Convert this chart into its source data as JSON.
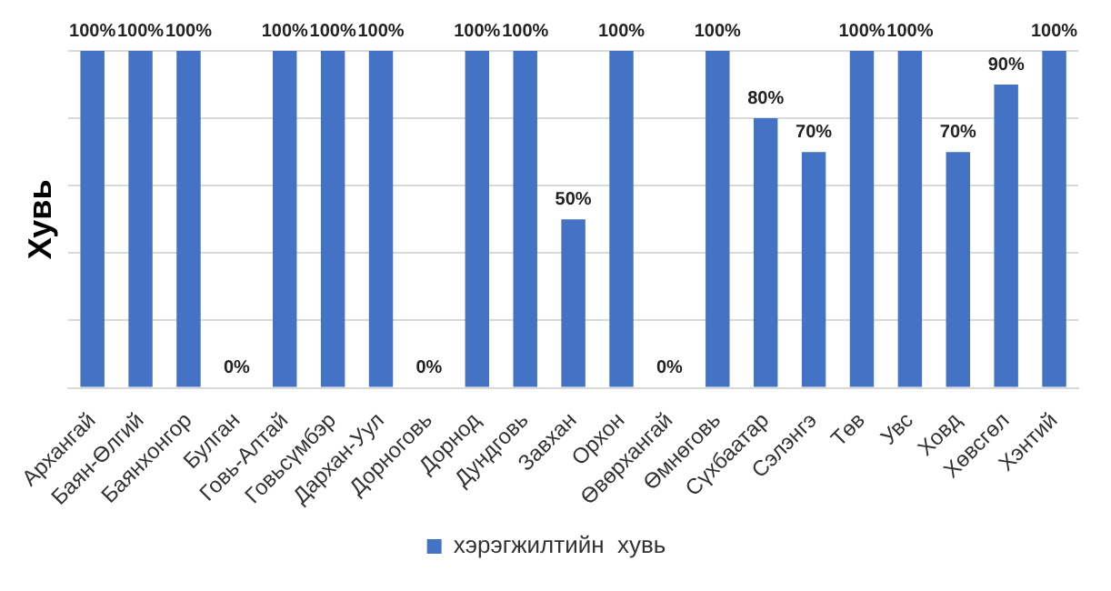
{
  "chart_data": {
    "type": "bar",
    "ylabel": "Хувь",
    "categories": [
      "Архангай",
      "Баян-Өлгий",
      "Баянхонгор",
      "Булган",
      "Говь-Алтай",
      "Говьсүмбэр",
      "Дархан-Уул",
      "Дорноговь",
      "Дорнод",
      "Дундговь",
      "Завхан",
      "Орхон",
      "Өвөрхангай",
      "Өмнөговь",
      "Сүхбаатар",
      "Сэлэнгэ",
      "Төв",
      "Увс",
      "Ховд",
      "Хөвсгөл",
      "Хэнтий"
    ],
    "series": [
      {
        "name": "хэрэгжилтийн  хувь",
        "color": "#4472c4",
        "values": [
          100,
          100,
          100,
          0,
          100,
          100,
          100,
          0,
          100,
          100,
          50,
          100,
          0,
          100,
          80,
          70,
          100,
          100,
          70,
          90,
          100
        ],
        "value_labels": [
          "100%",
          "100%",
          "100%",
          "0%",
          "100%",
          "100%",
          "100%",
          "0%",
          "100%",
          "100%",
          "50%",
          "100%",
          "0%",
          "100%",
          "80%",
          "70%",
          "100%",
          "100%",
          "70%",
          "90%",
          "100%"
        ]
      }
    ],
    "ylim": [
      0,
      100
    ],
    "yticks": [
      {
        "value": 0,
        "label": null
      },
      {
        "value": 20,
        "label": null
      },
      {
        "value": 40,
        "label": null
      },
      {
        "value": 60,
        "label": null
      },
      {
        "value": 80,
        "label": null
      },
      {
        "value": 100,
        "label": null
      }
    ],
    "tick_labels": "x",
    "grid": "y",
    "legend": "bottom"
  }
}
